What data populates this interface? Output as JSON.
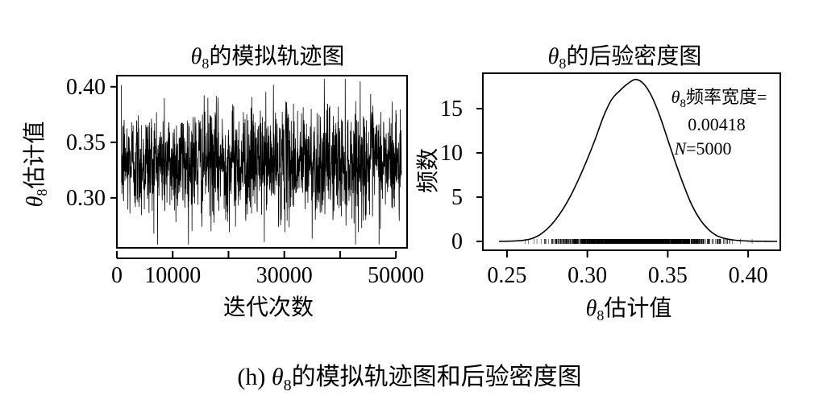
{
  "caption": {
    "prefix": "(h)",
    "symbol": "θ",
    "subscript": "8",
    "rest": "的模拟轨迹图和后验密度图"
  },
  "chart_data": [
    {
      "type": "line",
      "title": {
        "symbol": "θ",
        "subscript": "8",
        "rest": "的模拟轨迹图"
      },
      "xlabel": "迭代次数",
      "ylabel": {
        "symbol": "θ",
        "subscript": "8",
        "rest": "估计值"
      },
      "xlim": [
        0,
        52000
      ],
      "ylim": [
        0.255,
        0.41
      ],
      "xticks": [
        0,
        10000,
        30000,
        50000
      ],
      "xtick_minor": [
        20000,
        40000
      ],
      "yticks": [
        0.3,
        0.35,
        0.4
      ],
      "ytick_labels": [
        "0.30",
        "0.35",
        "0.40"
      ],
      "grid": false,
      "series": [
        {
          "n_iterations": 51000,
          "center": 0.332,
          "band_low": 0.3,
          "band_high": 0.365,
          "min": 0.258,
          "max": 0.407
        }
      ]
    },
    {
      "type": "area",
      "title": {
        "symbol": "θ",
        "subscript": "8",
        "rest": "的后验密度图"
      },
      "xlabel": {
        "symbol": "θ",
        "subscript": "8",
        "rest": "估计值"
      },
      "ylabel": "频数",
      "xlim": [
        0.235,
        0.42
      ],
      "ylim": [
        -1,
        19
      ],
      "xticks": [
        0.25,
        0.3,
        0.35,
        0.4
      ],
      "xtick_labels": [
        "0.25",
        "0.30",
        "0.35",
        "0.40"
      ],
      "yticks": [
        0,
        5,
        10,
        15
      ],
      "ytick_labels": [
        "0",
        "5",
        "10",
        "15"
      ],
      "grid": false,
      "x": [
        0.245,
        0.25,
        0.255,
        0.26,
        0.265,
        0.27,
        0.275,
        0.28,
        0.285,
        0.29,
        0.295,
        0.3,
        0.305,
        0.31,
        0.315,
        0.32,
        0.325,
        0.33,
        0.335,
        0.34,
        0.345,
        0.35,
        0.355,
        0.36,
        0.365,
        0.37,
        0.375,
        0.38,
        0.385,
        0.39,
        0.395,
        0.4,
        0.405,
        0.41,
        0.415,
        0.418
      ],
      "y": [
        0.0,
        0.02,
        0.05,
        0.12,
        0.3,
        0.7,
        1.4,
        2.4,
        3.7,
        5.3,
        7.2,
        9.3,
        11.6,
        14.1,
        16.0,
        17.0,
        17.8,
        18.3,
        17.8,
        16.4,
        14.2,
        11.5,
        8.8,
        6.3,
        4.1,
        2.5,
        1.4,
        0.7,
        0.35,
        0.18,
        0.09,
        0.04,
        0.02,
        0.01,
        0.0,
        0.0
      ],
      "rug": {
        "min": 0.255,
        "max": 0.405,
        "center": 0.332,
        "spread": 0.022
      },
      "annotations": {
        "line1_symbol": "θ",
        "line1_subscript": "8",
        "line1_text": "频率宽度=",
        "line2": "0.00418",
        "line3_var": "N",
        "line3_text": "=5000"
      }
    }
  ]
}
